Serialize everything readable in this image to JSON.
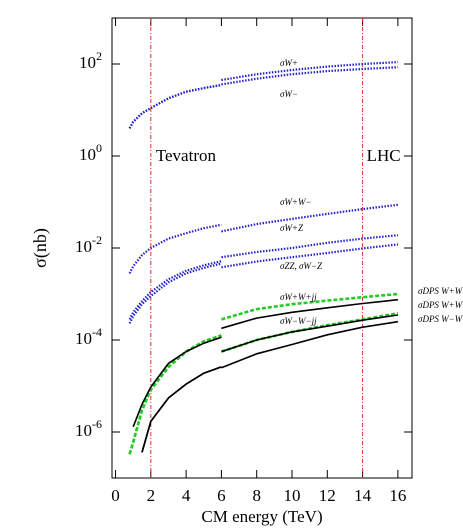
{
  "chart_data": {
    "type": "line",
    "x_label": "CM energy (TeV)",
    "y_label": "σ(nb)",
    "xlim": [
      -0.2,
      16.8
    ],
    "ylim": [
      1e-07,
      1000
    ],
    "log_y": true,
    "xticks": [
      0,
      2,
      4,
      6,
      8,
      10,
      12,
      14,
      16
    ],
    "yticks": [
      {
        "value": 1e-06,
        "label": "10^-6"
      },
      {
        "value": 0.0001,
        "label": "10^-4"
      },
      {
        "value": 0.01,
        "label": "10^-2"
      },
      {
        "value": 1,
        "label": "10^0"
      },
      {
        "value": 100,
        "label": "10^2"
      }
    ],
    "vlines": [
      {
        "x": 2,
        "label": "Tevatron",
        "color": "#e03030"
      },
      {
        "x": 14,
        "label": "LHC",
        "color": "#e03030"
      }
    ],
    "x": [
      0.8,
      1,
      1.5,
      2,
      3,
      4,
      5,
      6,
      null,
      6,
      8,
      10,
      12,
      14,
      16
    ],
    "series": [
      {
        "name": "σW+",
        "color": "#2222cc",
        "style": "dotted",
        "values": [
          4,
          5.5,
          8.5,
          11,
          18,
          25,
          30,
          35,
          null,
          45,
          60,
          74,
          88,
          100,
          110
        ]
      },
      {
        "name": "σW−",
        "color": "#2222cc",
        "style": "dotted",
        "values": [
          4,
          5.5,
          8.5,
          11,
          18,
          25,
          30,
          35,
          null,
          36,
          48,
          60,
          70,
          78,
          85
        ]
      },
      {
        "name": "σW+W−",
        "color": "#2222cc",
        "style": "dotted",
        "values": [
          0.0028,
          0.004,
          0.007,
          0.01,
          0.016,
          0.021,
          0.027,
          0.032,
          null,
          0.023,
          0.033,
          0.043,
          0.055,
          0.07,
          0.087
        ]
      },
      {
        "name": "σW+Z",
        "color": "#2222cc",
        "style": "dotted",
        "values": [
          0.00028,
          0.0004,
          0.0007,
          0.0011,
          0.0021,
          0.0032,
          0.0042,
          0.0052,
          null,
          0.0063,
          0.0082,
          0.01,
          0.013,
          0.016,
          0.019
        ]
      },
      {
        "name": "σZZ, σW−Z",
        "color": "#2222cc",
        "style": "dotted",
        "values": [
          0.00023,
          0.00033,
          0.0006,
          0.0009,
          0.0018,
          0.0028,
          0.0037,
          0.0046,
          null,
          0.0038,
          0.0051,
          0.0063,
          0.0078,
          0.0098,
          0.012
        ]
      },
      {
        "name": "σW+W+jj",
        "color": "#22cc22",
        "style": "dashed",
        "values": [
          3.3e-07,
          6e-07,
          3e-06,
          8.3e-06,
          2.6e-05,
          5.6e-05,
          9.3e-05,
          0.000126,
          null,
          0.00028,
          0.00047,
          0.0006,
          0.00072,
          0.00085,
          0.001
        ]
      },
      {
        "name": "σW−W−jj",
        "color": "#22cc22",
        "style": "dashed",
        "values": [
          3.3e-07,
          6e-07,
          3e-06,
          8.3e-06,
          2.6e-05,
          5.6e-05,
          9.3e-05,
          0.000126,
          null,
          5.6e-05,
          0.0001,
          0.00015,
          0.00021,
          0.00028,
          0.00038
        ]
      },
      {
        "name": "σDPS W+W−",
        "color": "#000000",
        "style": "solid",
        "values": [
          null,
          1.3e-06,
          4e-06,
          9.5e-06,
          3.1e-05,
          5.6e-05,
          8.5e-05,
          0.000115,
          null,
          0.00018,
          0.0003,
          0.0004,
          0.0005,
          0.00062,
          0.00075
        ]
      },
      {
        "name": "σDPS W+W+",
        "color": "#000000",
        "style": "solid",
        "values": [
          null,
          null,
          3.6e-07,
          1.7e-06,
          5.5e-06,
          1.1e-05,
          1.9e-05,
          2.6e-05,
          null,
          5.6e-05,
          0.0001,
          0.00015,
          0.0002,
          0.00027,
          0.00035
        ]
      },
      {
        "name": "σDPS W−W−",
        "color": "#000000",
        "style": "solid",
        "values": [
          null,
          null,
          3.6e-07,
          1.7e-06,
          5.5e-06,
          1.1e-05,
          1.9e-05,
          2.6e-05,
          null,
          2.5e-05,
          5e-05,
          8e-05,
          0.00013,
          0.00019,
          0.00025
        ]
      }
    ]
  }
}
